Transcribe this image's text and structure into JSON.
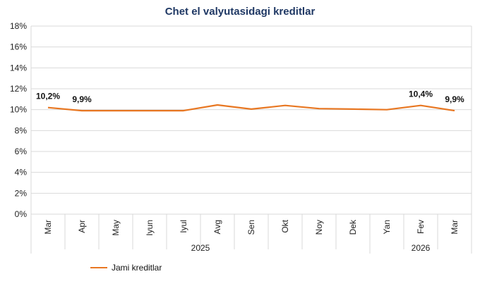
{
  "chart_data": {
    "type": "line",
    "title": "Chet el valyutasidagi kreditlar",
    "categories": [
      "Mar",
      "Apr",
      "May",
      "Iyun",
      "Iyul",
      "Avg",
      "Sen",
      "Okt",
      "Noy",
      "Dek",
      "Yan",
      "Fev",
      "Mar"
    ],
    "year_groups": [
      {
        "label": "2025",
        "count": 10
      },
      {
        "label": "2026",
        "count": 3
      }
    ],
    "series": [
      {
        "name": "Jami kreditlar",
        "color": "#e87722",
        "values": [
          10.2,
          9.9,
          9.9,
          9.9,
          9.9,
          10.45,
          10.05,
          10.4,
          10.1,
          10.05,
          10.0,
          10.4,
          9.9
        ]
      }
    ],
    "data_labels": [
      {
        "index": 0,
        "text": "10,2%"
      },
      {
        "index": 1,
        "text": "9,9%"
      },
      {
        "index": 11,
        "text": "10,4%"
      },
      {
        "index": 12,
        "text": "9,9%"
      }
    ],
    "yticks": [
      "0%",
      "2%",
      "4%",
      "6%",
      "8%",
      "10%",
      "12%",
      "14%",
      "16%",
      "18%"
    ],
    "ylim": [
      0,
      18
    ],
    "ystep": 2,
    "grid": true,
    "legend": "bottom-left"
  }
}
